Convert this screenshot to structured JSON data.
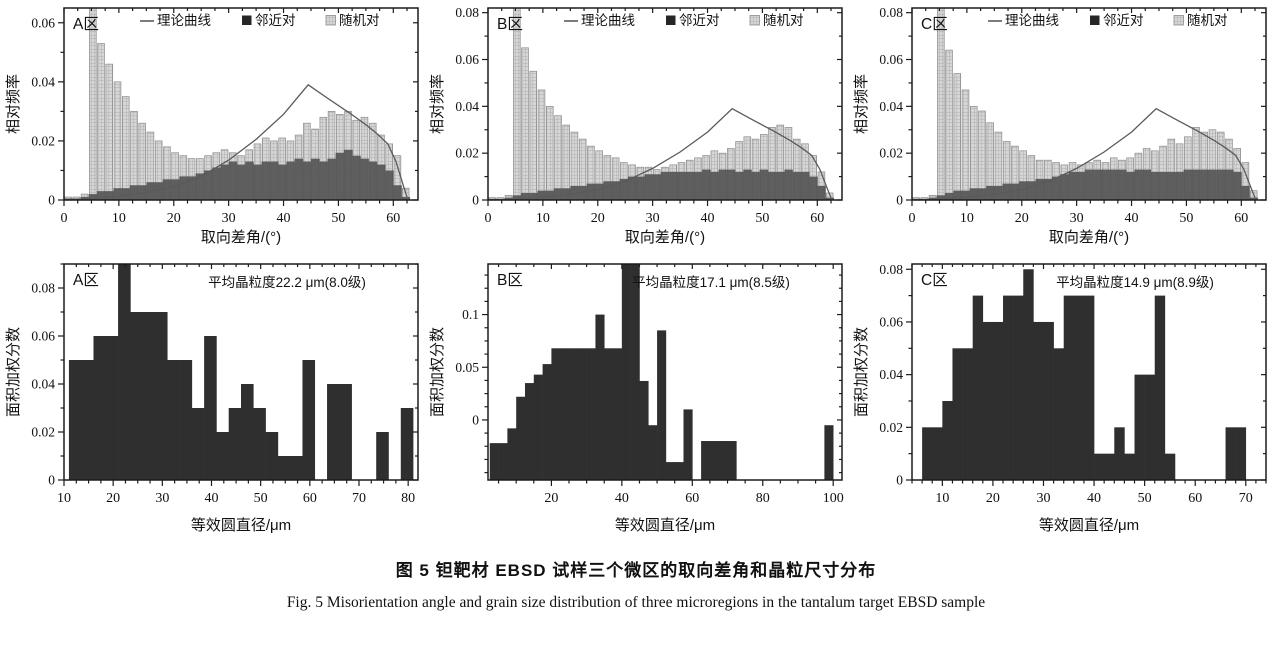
{
  "caption": {
    "zh": "图 5  钽靶材 EBSD 试样三个微区的取向差角和晶粒尺寸分布",
    "en": "Fig. 5  Misorientation angle and grain size distribution of three microregions in the tantalum target EBSD sample"
  },
  "legend": {
    "curve": "理论曲线",
    "neighbor": "邻近对",
    "random": "随机对"
  },
  "colors": {
    "frame": "#1c1c1c",
    "text": "#111111",
    "dark_bar": "#2f2f2f",
    "top_dark": "#555555",
    "light_fill": "#d6d6d6",
    "light_stroke": "#8c8c8c",
    "hatch": "#a4a4a4",
    "curve": "#5a5a5a",
    "legend_dark": "#262626"
  },
  "chart_data": [
    {
      "id": "top-a",
      "type": "bar",
      "subtype": "dual-histogram",
      "row": "top",
      "region": "A区",
      "xlabel": "取向差角/(°)",
      "ylabel": "相对频率",
      "xmin": 0,
      "xmax": 64.5,
      "xticks": [
        0,
        10,
        20,
        30,
        40,
        50,
        60
      ],
      "xminor": 2.5,
      "ymin": 0,
      "ymax": 0.065,
      "yticks": [
        0,
        0.02,
        0.04,
        0.06
      ],
      "ytick_labels": [
        "0",
        "0.02",
        "0.04",
        "0.06"
      ],
      "yminor": 0.01,
      "bin_start": 0,
      "bin_width": 1.5,
      "series": [
        {
          "name": "随机对",
          "values": [
            0.001,
            0.001,
            0.002,
            0.066,
            0.053,
            0.046,
            0.04,
            0.035,
            0.03,
            0.026,
            0.023,
            0.02,
            0.018,
            0.016,
            0.015,
            0.014,
            0.014,
            0.015,
            0.016,
            0.017,
            0.016,
            0.015,
            0.017,
            0.019,
            0.021,
            0.02,
            0.021,
            0.02,
            0.022,
            0.026,
            0.024,
            0.028,
            0.03,
            0.029,
            0.03,
            0.027,
            0.028,
            0.026,
            0.022,
            0.019,
            0.015,
            0.004
          ]
        },
        {
          "name": "邻近对",
          "values": [
            0.0005,
            0.0005,
            0.001,
            0.002,
            0.003,
            0.003,
            0.004,
            0.004,
            0.005,
            0.005,
            0.006,
            0.006,
            0.007,
            0.007,
            0.008,
            0.008,
            0.009,
            0.01,
            0.011,
            0.012,
            0.013,
            0.012,
            0.013,
            0.012,
            0.013,
            0.013,
            0.012,
            0.013,
            0.014,
            0.013,
            0.014,
            0.013,
            0.014,
            0.016,
            0.017,
            0.015,
            0.014,
            0.013,
            0.012,
            0.01,
            0.005,
            0.001
          ]
        }
      ],
      "theory_curve": [
        [
          5,
          0.0005
        ],
        [
          10,
          0.0012
        ],
        [
          15,
          0.0025
        ],
        [
          20,
          0.0045
        ],
        [
          25,
          0.008
        ],
        [
          30,
          0.0135
        ],
        [
          35,
          0.0205
        ],
        [
          40,
          0.029
        ],
        [
          44.5,
          0.039
        ],
        [
          48,
          0.0345
        ],
        [
          52,
          0.0295
        ],
        [
          55,
          0.0255
        ],
        [
          57,
          0.0225
        ],
        [
          59,
          0.019
        ],
        [
          60.5,
          0.013
        ],
        [
          61.8,
          0.005
        ],
        [
          62.5,
          0.001
        ]
      ]
    },
    {
      "id": "top-b",
      "type": "bar",
      "subtype": "dual-histogram",
      "row": "top",
      "region": "B区",
      "xlabel": "取向差角/(°)",
      "ylabel": "相对频率",
      "xmin": 0,
      "xmax": 64.5,
      "xticks": [
        0,
        10,
        20,
        30,
        40,
        50,
        60
      ],
      "xminor": 2.5,
      "ymin": 0,
      "ymax": 0.082,
      "yticks": [
        0,
        0.02,
        0.04,
        0.06,
        0.08
      ],
      "ytick_labels": [
        "0",
        "0.02",
        "0.04",
        "0.06",
        "0.08"
      ],
      "yminor": 0.01,
      "bin_start": 0,
      "bin_width": 1.5,
      "series": [
        {
          "name": "随机对",
          "values": [
            0.001,
            0.001,
            0.002,
            0.084,
            0.065,
            0.055,
            0.047,
            0.04,
            0.036,
            0.032,
            0.029,
            0.026,
            0.023,
            0.021,
            0.019,
            0.018,
            0.016,
            0.015,
            0.014,
            0.014,
            0.013,
            0.014,
            0.015,
            0.016,
            0.017,
            0.018,
            0.019,
            0.021,
            0.02,
            0.022,
            0.025,
            0.027,
            0.026,
            0.028,
            0.031,
            0.032,
            0.031,
            0.026,
            0.024,
            0.019,
            0.012,
            0.003
          ]
        },
        {
          "name": "邻近对",
          "values": [
            0.0005,
            0.0005,
            0.001,
            0.002,
            0.003,
            0.003,
            0.004,
            0.004,
            0.005,
            0.005,
            0.006,
            0.006,
            0.007,
            0.007,
            0.008,
            0.008,
            0.009,
            0.01,
            0.01,
            0.011,
            0.011,
            0.012,
            0.012,
            0.012,
            0.012,
            0.012,
            0.013,
            0.012,
            0.013,
            0.013,
            0.012,
            0.013,
            0.012,
            0.013,
            0.012,
            0.012,
            0.013,
            0.012,
            0.012,
            0.01,
            0.006,
            0.001
          ]
        }
      ],
      "theory_curve": [
        [
          5,
          0.0005
        ],
        [
          10,
          0.0012
        ],
        [
          15,
          0.0025
        ],
        [
          20,
          0.0045
        ],
        [
          25,
          0.008
        ],
        [
          30,
          0.0135
        ],
        [
          35,
          0.0205
        ],
        [
          40,
          0.029
        ],
        [
          44.5,
          0.039
        ],
        [
          48,
          0.0345
        ],
        [
          52,
          0.0295
        ],
        [
          55,
          0.0255
        ],
        [
          57,
          0.0225
        ],
        [
          59,
          0.019
        ],
        [
          60.5,
          0.013
        ],
        [
          61.8,
          0.005
        ],
        [
          62.5,
          0.001
        ]
      ]
    },
    {
      "id": "top-c",
      "type": "bar",
      "subtype": "dual-histogram",
      "row": "top",
      "region": "C区",
      "xlabel": "取向差角/(°)",
      "ylabel": "相对频率",
      "xmin": 0,
      "xmax": 64.5,
      "xticks": [
        0,
        10,
        20,
        30,
        40,
        50,
        60
      ],
      "xminor": 2.5,
      "ymin": 0,
      "ymax": 0.082,
      "yticks": [
        0,
        0.02,
        0.04,
        0.06,
        0.08
      ],
      "ytick_labels": [
        "0",
        "0.02",
        "0.04",
        "0.06",
        "0.08"
      ],
      "yminor": 0.01,
      "bin_start": 0,
      "bin_width": 1.5,
      "series": [
        {
          "name": "随机对",
          "values": [
            0.001,
            0.001,
            0.002,
            0.084,
            0.064,
            0.054,
            0.047,
            0.04,
            0.038,
            0.033,
            0.029,
            0.025,
            0.023,
            0.021,
            0.019,
            0.017,
            0.017,
            0.016,
            0.015,
            0.016,
            0.015,
            0.016,
            0.017,
            0.016,
            0.018,
            0.017,
            0.018,
            0.02,
            0.022,
            0.021,
            0.023,
            0.026,
            0.024,
            0.027,
            0.031,
            0.029,
            0.03,
            0.029,
            0.026,
            0.022,
            0.016,
            0.004
          ]
        },
        {
          "name": "邻近对",
          "values": [
            0.0005,
            0.0005,
            0.001,
            0.002,
            0.003,
            0.004,
            0.004,
            0.005,
            0.005,
            0.006,
            0.006,
            0.007,
            0.007,
            0.008,
            0.008,
            0.009,
            0.009,
            0.01,
            0.011,
            0.012,
            0.012,
            0.013,
            0.013,
            0.013,
            0.013,
            0.013,
            0.012,
            0.013,
            0.013,
            0.012,
            0.012,
            0.012,
            0.012,
            0.013,
            0.013,
            0.013,
            0.013,
            0.013,
            0.013,
            0.012,
            0.006,
            0.001
          ]
        }
      ],
      "theory_curve": [
        [
          5,
          0.0005
        ],
        [
          10,
          0.0012
        ],
        [
          15,
          0.0025
        ],
        [
          20,
          0.0045
        ],
        [
          25,
          0.008
        ],
        [
          30,
          0.0135
        ],
        [
          35,
          0.0205
        ],
        [
          40,
          0.029
        ],
        [
          44.5,
          0.039
        ],
        [
          48,
          0.0345
        ],
        [
          52,
          0.0295
        ],
        [
          55,
          0.0255
        ],
        [
          57,
          0.0225
        ],
        [
          59,
          0.019
        ],
        [
          60.5,
          0.013
        ],
        [
          61.8,
          0.005
        ],
        [
          62.5,
          0.001
        ]
      ]
    },
    {
      "id": "bot-a",
      "type": "bar",
      "subtype": "histogram",
      "row": "bottom",
      "region": "A区",
      "note": "平均晶粒度22.2 μm(8.0级)",
      "xlabel": "等效圆直径/μm",
      "ylabel": "面积加权分数",
      "xmin": 10,
      "xmax": 82,
      "xticks": [
        10,
        20,
        30,
        40,
        50,
        60,
        70,
        80
      ],
      "xminor": 2.5,
      "ymin": 0,
      "ymax": 0.09,
      "yticks": [
        0,
        0.02,
        0.04,
        0.06,
        0.08
      ],
      "ytick_labels": [
        "0",
        "0.02",
        "0.04",
        "0.06",
        "0.08"
      ],
      "yminor": 0.01,
      "bin_start": 11,
      "bin_width": 2.5,
      "values": [
        0.05,
        0.05,
        0.06,
        0.06,
        0.09,
        0.07,
        0.07,
        0.07,
        0.05,
        0.05,
        0.03,
        0.06,
        0.02,
        0.03,
        0.04,
        0.03,
        0.02,
        0.01,
        0.01,
        0.05,
        0,
        0.04,
        0.04,
        0,
        0,
        0.02,
        0,
        0.03
      ]
    },
    {
      "id": "bot-b",
      "type": "bar",
      "subtype": "histogram",
      "row": "bottom",
      "region": "B区",
      "note": "平均晶粒度17.1 μm(8.5级)",
      "xlabel": "等效圆直径/μm",
      "ylabel": "面积加权分数",
      "xmin": 2,
      "xmax": 102.5,
      "xticks": [
        20,
        40,
        60,
        80,
        100
      ],
      "xminor": 5,
      "ymin": -0.057,
      "ymax": 0.148,
      "yticks": [
        0,
        0.05,
        0.1
      ],
      "ytick_labels": [
        "0",
        "0.05",
        "0.1"
      ],
      "yminor": 0.0125,
      "bin_start": 2.5,
      "bin_width": 2.5,
      "values": [
        -0.022,
        -0.022,
        -0.008,
        0.022,
        0.035,
        0.043,
        0.053,
        0.068,
        0.068,
        0.068,
        0.068,
        0.068,
        0.1,
        0.068,
        0.068,
        0.148,
        0.148,
        0.037,
        -0.005,
        0.085,
        -0.04,
        -0.04,
        0.01,
        -0.057,
        -0.02,
        -0.02,
        -0.02,
        -0.02,
        -0.057,
        -0.057,
        -0.057,
        -0.057,
        -0.057,
        -0.057,
        -0.057,
        -0.057,
        -0.057,
        -0.057,
        -0.005,
        -0.057
      ]
    },
    {
      "id": "bot-c",
      "type": "bar",
      "subtype": "histogram",
      "row": "bottom",
      "region": "C区",
      "note": "平均晶粒度14.9 μm(8.9级)",
      "xlabel": "等效圆直径/μm",
      "ylabel": "面积加权分数",
      "xmin": 4,
      "xmax": 74,
      "xticks": [
        10,
        20,
        30,
        40,
        50,
        60,
        70
      ],
      "xminor": 2,
      "ymin": 0,
      "ymax": 0.082,
      "yticks": [
        0,
        0.02,
        0.04,
        0.06,
        0.08
      ],
      "ytick_labels": [
        "0",
        "0.02",
        "0.04",
        "0.06",
        "0.08"
      ],
      "yminor": 0.01,
      "bin_start": 6,
      "bin_width": 2,
      "values": [
        0.02,
        0.02,
        0.03,
        0.05,
        0.05,
        0.07,
        0.06,
        0.06,
        0.07,
        0.07,
        0.08,
        0.06,
        0.06,
        0.05,
        0.07,
        0.07,
        0.07,
        0.01,
        0.01,
        0.02,
        0.01,
        0.04,
        0.04,
        0.07,
        0.01,
        0,
        0,
        0,
        0,
        0,
        0.02,
        0.02,
        0,
        0
      ]
    }
  ]
}
